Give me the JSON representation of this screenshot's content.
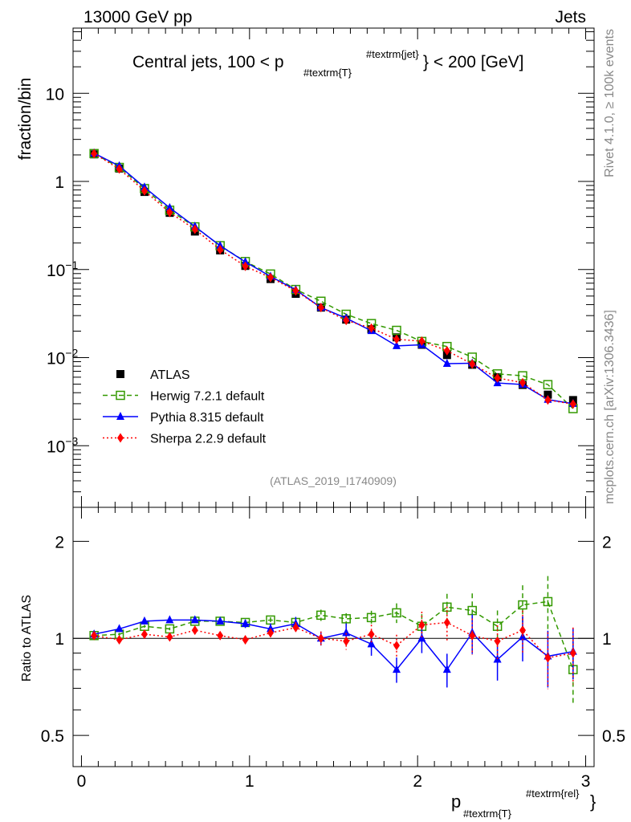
{
  "header": {
    "left": "13000 GeV pp",
    "right": "Jets"
  },
  "side": {
    "rivet": "Rivet 4.1.0, ≥ 100k events",
    "mcplots": "mcplots.cern.ch [arXiv:1306.3436]"
  },
  "chart_data": {
    "type": "line",
    "title_main": "Central jets, 100 < p",
    "title_sub": "#textrm{T}",
    "title_sup": "#textrm{jet}",
    "title_end": "} < 200 [GeV]",
    "ylabel": "fraction/bin",
    "ratio_ylabel": "Ratio to ATLAS",
    "xlabel_main": "p",
    "xlabel_sub": "#textrm{T}",
    "xlabel_sup": "#textrm{rel}",
    "xlabel_end": "}",
    "analysis": "(ATLAS_2019_I1740909)",
    "xlim": [
      -0.05,
      3.05
    ],
    "ylim": [
      0.0002,
      55
    ],
    "ratio_ylim": [
      0.4,
      2.55
    ],
    "y_scale": "log",
    "ratio_scale": "log",
    "x_ticks": [
      "0",
      "1",
      "2",
      "3"
    ],
    "y_ticks": [
      {
        "v": 10,
        "b": "10",
        "e": ""
      },
      {
        "v": 1,
        "b": "1",
        "e": ""
      },
      {
        "v": 0.1,
        "b": "10",
        "e": "−1"
      },
      {
        "v": 0.01,
        "b": "10",
        "e": "−2"
      },
      {
        "v": 0.001,
        "b": "10",
        "e": "−3"
      }
    ],
    "ratio_ticks": [
      {
        "v": 2,
        "l": "2"
      },
      {
        "v": 1,
        "l": "1"
      },
      {
        "v": 0.5,
        "l": "0.5"
      }
    ],
    "legend_position": "center-left",
    "x": [
      0.075,
      0.225,
      0.375,
      0.525,
      0.675,
      0.825,
      0.975,
      1.125,
      1.275,
      1.425,
      1.575,
      1.725,
      1.875,
      2.025,
      2.175,
      2.325,
      2.475,
      2.625,
      2.775,
      2.925
    ],
    "series": [
      {
        "name": "ATLAS",
        "color": "#000000",
        "marker": "square",
        "values": [
          2.03,
          1.4,
          0.76,
          0.44,
          0.27,
          0.165,
          0.11,
          0.078,
          0.053,
          0.037,
          0.027,
          0.021,
          0.017,
          0.014,
          0.0107,
          0.0083,
          0.006,
          0.0049,
          0.0038,
          0.0033
        ]
      },
      {
        "name": "Herwig 7.2.1 default",
        "color": "#339900",
        "marker": "open-square",
        "dash": "6,4",
        "ratio": [
          1.02,
          1.03,
          1.09,
          1.07,
          1.13,
          1.13,
          1.12,
          1.14,
          1.12,
          1.18,
          1.15,
          1.16,
          1.2,
          1.09,
          1.25,
          1.22,
          1.09,
          1.27,
          1.3,
          0.8
        ],
        "ratio_err": [
          0.01,
          0.01,
          0.01,
          0.01,
          0.01,
          0.01,
          0.02,
          0.02,
          0.03,
          0.04,
          0.04,
          0.05,
          0.07,
          0.09,
          0.1,
          0.13,
          0.12,
          0.15,
          0.2,
          0.22
        ]
      },
      {
        "name": "Pythia 8.315 default",
        "color": "#0000ff",
        "marker": "triangle",
        "ratio": [
          1.03,
          1.07,
          1.13,
          1.14,
          1.14,
          1.13,
          1.11,
          1.07,
          1.11,
          1.0,
          1.04,
          0.96,
          0.8,
          1.0,
          0.8,
          1.04,
          0.86,
          1.01,
          0.88,
          0.91
        ],
        "ratio_err": [
          0.01,
          0.01,
          0.01,
          0.01,
          0.01,
          0.02,
          0.03,
          0.04,
          0.05,
          0.05,
          0.07,
          0.08,
          0.09,
          0.1,
          0.12,
          0.14,
          0.14,
          0.16,
          0.2,
          0.18
        ]
      },
      {
        "name": "Sherpa 2.2.9 default",
        "color": "#ff0000",
        "marker": "diamond",
        "dash": "2,3",
        "ratio": [
          1.02,
          0.99,
          1.03,
          1.01,
          1.06,
          1.02,
          0.99,
          1.04,
          1.08,
          1.0,
          0.98,
          1.03,
          0.95,
          1.1,
          1.12,
          1.02,
          0.98,
          1.06,
          0.87,
          0.9
        ],
        "ratio_err": [
          0.01,
          0.01,
          0.01,
          0.01,
          0.02,
          0.02,
          0.03,
          0.03,
          0.04,
          0.05,
          0.06,
          0.07,
          0.08,
          0.1,
          0.12,
          0.13,
          0.12,
          0.15,
          0.2,
          0.2
        ]
      }
    ]
  }
}
